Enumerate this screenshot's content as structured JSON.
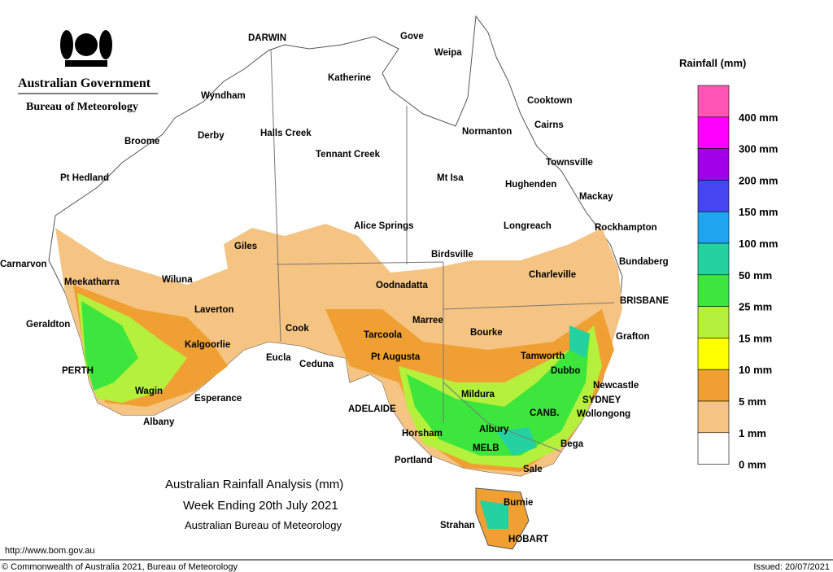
{
  "header": {
    "title": "Australian Government",
    "subtitle": "Bureau of Meteorology"
  },
  "map": {
    "title": "Australian Rainfall Analysis (mm)",
    "subtitle": "Week Ending 20th July 2021",
    "source": "Australian Bureau of Meteorology",
    "places": [
      "DARWIN",
      "Gove",
      "Weipa",
      "Katherine",
      "Wyndham",
      "Cooktown",
      "Derby",
      "Halls Creek",
      "Normanton",
      "Cairns",
      "Broome",
      "Tennant Creek",
      "Townsville",
      "Pt Hedland",
      "Mt Isa",
      "Hughenden",
      "Mackay",
      "Alice Springs",
      "Longreach",
      "Rockhampton",
      "Giles",
      "Birdsville",
      "Bundaberg",
      "Carnarvon",
      "Charleville",
      "Meekatharra",
      "Wiluna",
      "Oodnadatta",
      "BRISBANE",
      "Laverton",
      "Marree",
      "Geraldton",
      "Cook",
      "Bourke",
      "Grafton",
      "Tarcoola",
      "Kalgoorlie",
      "Eucla",
      "Ceduna",
      "Pt Augusta",
      "Tamworth",
      "PERTH",
      "Dubbo",
      "Newcastle",
      "Wagin",
      "Mildura",
      "Esperance",
      "SYDNEY",
      "ADELAIDE",
      "CANB.",
      "Wollongong",
      "Albany",
      "Horsham",
      "Albury",
      "MELB",
      "Bega",
      "Portland",
      "Sale",
      "Burnie",
      "Strahan",
      "HOBART"
    ]
  },
  "legend": {
    "title": "Rainfall (mm)",
    "labels": [
      "400 mm",
      "300 mm",
      "200 mm",
      "150 mm",
      "100 mm",
      "50 mm",
      "25 mm",
      "15 mm",
      "10 mm",
      "5 mm",
      "1 mm",
      "0 mm"
    ],
    "colors": [
      "#ff55b4",
      "#ff00ff",
      "#a000e6",
      "#4646f0",
      "#1ea5f0",
      "#23d2a0",
      "#3ce63c",
      "#b4f03c",
      "#ffff00",
      "#f0a032",
      "#f5c382",
      "#ffffff"
    ]
  },
  "footer": {
    "url": "http://www.bom.gov.au",
    "copyright": "© Commonwealth of Australia 2021, Bureau of Meteorology",
    "issued": "Issued: 20/07/2021"
  }
}
